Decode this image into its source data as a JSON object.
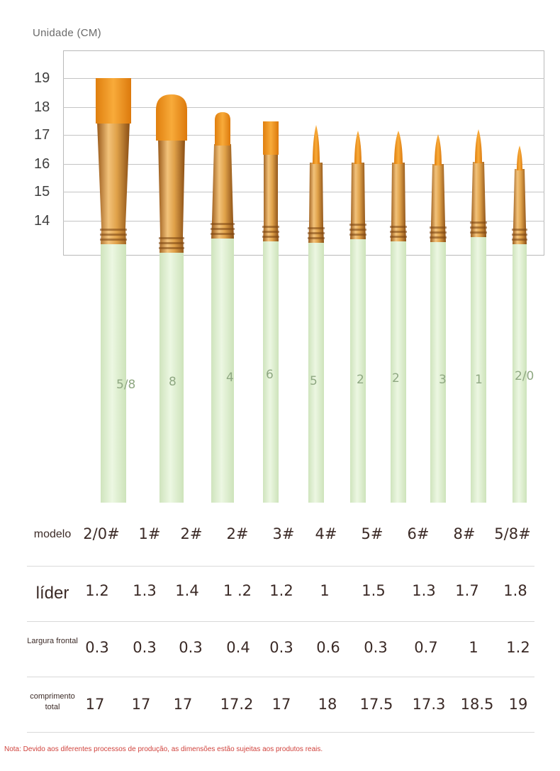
{
  "unit_label": "Unidade (CM)",
  "y_axis": {
    "ticks": [
      "19",
      "18",
      "17",
      "16",
      "15",
      "14"
    ]
  },
  "colors": {
    "handle": "#dff0d0",
    "ferrule": "#d99a3a",
    "bristle": "#f39a1c",
    "note": "#d0423c"
  },
  "brushes": [
    {
      "handle_number": "5/8",
      "tip": "flat-wide",
      "top_cm": 19
    },
    {
      "handle_number": "8",
      "tip": "filbert",
      "top_cm": 18.4
    },
    {
      "handle_number": "4",
      "tip": "filbert-small",
      "top_cm": 17.8
    },
    {
      "handle_number": "6",
      "tip": "flat-small",
      "top_cm": 17.4
    },
    {
      "handle_number": "5",
      "tip": "round",
      "top_cm": 17.3
    },
    {
      "handle_number": "2",
      "tip": "round",
      "top_cm": 17.1
    },
    {
      "handle_number": "2",
      "tip": "round",
      "top_cm": 17.1
    },
    {
      "handle_number": "3",
      "tip": "round",
      "top_cm": 17.0
    },
    {
      "handle_number": "1",
      "tip": "round",
      "top_cm": 17.2
    },
    {
      "handle_number": "2/0",
      "tip": "round",
      "top_cm": 16.6
    }
  ],
  "table": {
    "rows": [
      {
        "label": "modelo",
        "values": [
          "2/0#",
          "1#",
          "2#",
          "2#",
          "3#",
          "4#",
          "5#",
          "6#",
          "8#",
          "5/8#"
        ]
      },
      {
        "label": "líder",
        "values": [
          "1.2",
          "1.3",
          "1.4",
          "1 .2",
          "1.2",
          "1",
          "1.5",
          "1.3",
          "1.7",
          "1.8"
        ]
      },
      {
        "label": "Largura frontal",
        "values": [
          "0.3",
          "0.3",
          "0.3",
          "0.4",
          "0.3",
          "0.6",
          "0.3",
          "0.7",
          "1",
          "1.2"
        ]
      },
      {
        "label": "comprimento total",
        "values": [
          "17",
          "17",
          "17",
          "17.2",
          "17",
          "18",
          "17.5",
          "17.3",
          "18.5",
          "19"
        ]
      }
    ]
  },
  "note": "Nota: Devido aos diferentes processos de produção, as dimensões estão sujeitas aos produtos reais."
}
